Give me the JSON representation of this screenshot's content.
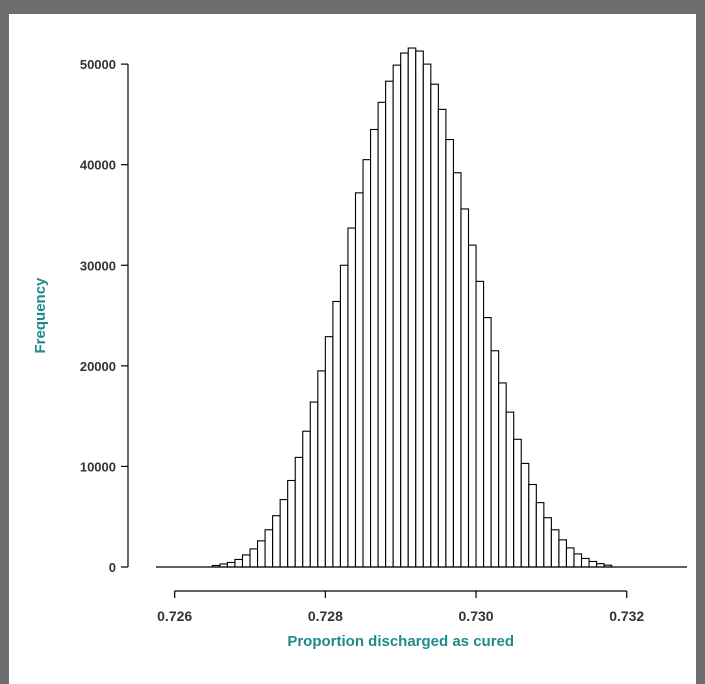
{
  "chart_data": {
    "type": "bar",
    "title": "",
    "xlabel": "Proportion discharged as cured",
    "ylabel": "Frequency",
    "xlim": [
      0.7255,
      0.7328
    ],
    "ylim": [
      0,
      52000
    ],
    "x_ticks": [
      0.726,
      0.728,
      0.73,
      0.732
    ],
    "x_tick_labels": [
      "0.726",
      "0.728",
      "0.730",
      "0.732"
    ],
    "y_ticks": [
      0,
      10000,
      20000,
      30000,
      40000,
      50000
    ],
    "y_tick_labels": [
      "0",
      "10000",
      "20000",
      "30000",
      "40000",
      "50000"
    ],
    "bin_width": 0.0001,
    "bin_starts": [
      0.7265,
      0.7266,
      0.7267,
      0.7268,
      0.7269,
      0.727,
      0.7271,
      0.7272,
      0.7273,
      0.7274,
      0.7275,
      0.7276,
      0.7277,
      0.7278,
      0.7279,
      0.728,
      0.7281,
      0.7282,
      0.7283,
      0.7284,
      0.7285,
      0.7286,
      0.7287,
      0.7288,
      0.7289,
      0.729,
      0.7291,
      0.7292,
      0.7293,
      0.7294,
      0.7295,
      0.7296,
      0.7297,
      0.7298,
      0.7299,
      0.73,
      0.7301,
      0.7302,
      0.7303,
      0.7304,
      0.7305,
      0.7306,
      0.7307,
      0.7308,
      0.7309,
      0.731,
      0.7311,
      0.7312,
      0.7313,
      0.7314,
      0.7315,
      0.7316,
      0.7317
    ],
    "values": [
      150,
      300,
      450,
      750,
      1200,
      1800,
      2600,
      3700,
      5100,
      6700,
      8600,
      10900,
      13500,
      16400,
      19500,
      22900,
      26400,
      30000,
      33700,
      37200,
      40500,
      43500,
      46200,
      48300,
      49900,
      51100,
      51600,
      51300,
      50000,
      48000,
      45500,
      42500,
      39200,
      35600,
      32000,
      28400,
      24800,
      21500,
      18300,
      15400,
      12700,
      10300,
      8200,
      6400,
      4900,
      3700,
      2700,
      1900,
      1300,
      850,
      550,
      330,
      180
    ],
    "grid": false
  }
}
